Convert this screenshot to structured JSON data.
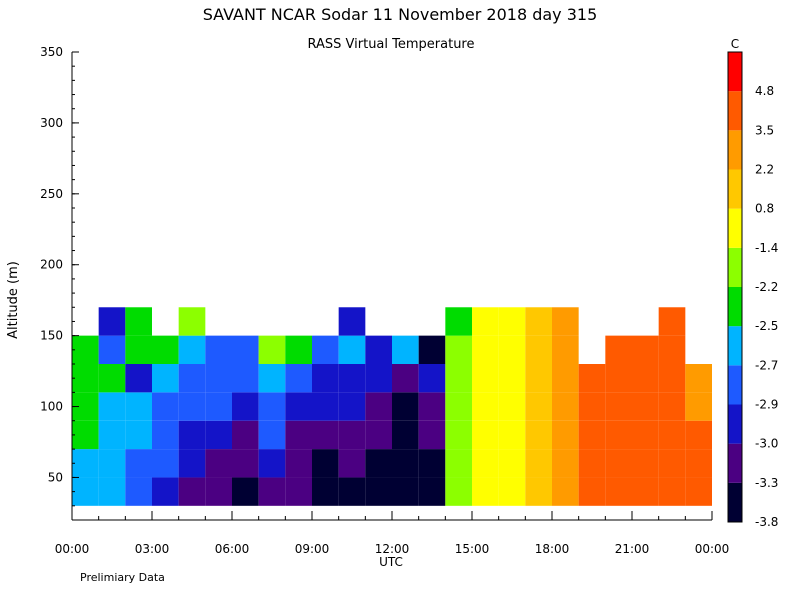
{
  "title": "SAVANT  NCAR Sodar  11 November 2018  day 315",
  "subtitle": "RASS Virtual Temperature",
  "footer_note": "Prelimiary Data",
  "chart_data": {
    "type": "heatmap",
    "title": "SAVANT  NCAR Sodar  11 November 2018  day 315",
    "subtitle": "RASS Virtual Temperature",
    "xlabel": "UTC",
    "ylabel": "Altitude (m)",
    "x_ticks": [
      "00:00",
      "03:00",
      "06:00",
      "09:00",
      "12:00",
      "15:00",
      "18:00",
      "21:00",
      "00:00"
    ],
    "xlim_hours": [
      0,
      24
    ],
    "y_ticks": [
      50,
      100,
      150,
      200,
      250,
      300,
      350
    ],
    "ylim": [
      20,
      350
    ],
    "colorbar": {
      "unit": "C",
      "tick_labels": [
        "4.8",
        "3.5",
        "2.2",
        "0.8",
        "-1.4",
        "-2.2",
        "-2.5",
        "-2.7",
        "-2.9",
        "-3.0",
        "-3.3",
        "-3.8"
      ],
      "colors": [
        "#000033",
        "#4b0082",
        "#1414c8",
        "#1e5aff",
        "#00b4ff",
        "#00dc00",
        "#8cff00",
        "#ffff00",
        "#ffc800",
        "#ff9b00",
        "#ff5a00",
        "#ff0000"
      ]
    },
    "altitudes_m": [
      40,
      60,
      80,
      100,
      120,
      140,
      160
    ],
    "time_hours": [
      0,
      1,
      2,
      3,
      4,
      5,
      6,
      7,
      8,
      9,
      10,
      11,
      12,
      13,
      14,
      15,
      16,
      17,
      18,
      19,
      20,
      21,
      22,
      23
    ],
    "values_c": [
      [
        -2.6,
        -2.7,
        -2.8,
        -3.0,
        -3.1,
        -3.3,
        -3.6,
        -3.2,
        -3.3,
        -3.5,
        -3.4,
        -3.6,
        -3.7,
        -3.5,
        -2.2,
        -1.4,
        -1.2,
        2.0,
        2.5,
        4.5,
        4.6,
        4.7,
        4.2,
        3.5
      ],
      [
        -2.6,
        -2.7,
        -2.8,
        -2.9,
        -3.0,
        -3.2,
        -3.3,
        -3.0,
        -3.3,
        -3.4,
        -3.3,
        -3.4,
        -3.5,
        -3.4,
        -2.2,
        -1.4,
        -1.2,
        2.0,
        2.5,
        4.5,
        4.6,
        4.7,
        4.3,
        3.5
      ],
      [
        -2.5,
        -2.7,
        -2.7,
        -2.9,
        -3.0,
        -3.0,
        -3.1,
        -2.9,
        -3.1,
        -3.2,
        -3.2,
        -3.3,
        -3.4,
        -3.3,
        -2.2,
        -1.4,
        -1.2,
        2.0,
        2.3,
        4.5,
        4.6,
        4.7,
        4.4,
        3.5
      ],
      [
        -2.5,
        -2.6,
        -2.6,
        -2.8,
        -2.9,
        -2.9,
        -3.0,
        -2.8,
        -3.0,
        -3.0,
        -3.0,
        -3.1,
        -4.7,
        -3.1,
        -2.2,
        -1.4,
        -1.0,
        2.0,
        2.4,
        4.5,
        4.6,
        4.7,
        3.6,
        3.0
      ],
      [
        -2.3,
        -2.5,
        -3.0,
        -2.6,
        -2.8,
        -2.8,
        -2.9,
        -2.7,
        -2.8,
        -3.0,
        -3.0,
        -3.0,
        -3.2,
        -3.0,
        -2.2,
        -1.4,
        -1.0,
        2.0,
        2.5,
        4.5,
        4.6,
        4.7,
        3.6,
        3.0
      ],
      [
        -2.3,
        -2.9,
        -2.4,
        -2.5,
        -2.6,
        -2.8,
        -2.8,
        -2.2,
        -2.5,
        -2.9,
        -2.7,
        -3.0,
        -2.7,
        -4.6,
        -2.2,
        -1.4,
        -1.0,
        2.0,
        2.6,
        null,
        4.6,
        4.7,
        4.6,
        null
      ],
      [
        null,
        -3.0,
        -2.5,
        null,
        -2.2,
        null,
        null,
        null,
        null,
        null,
        -3.0,
        null,
        null,
        null,
        -2.3,
        -1.4,
        -1.0,
        2.0,
        2.3,
        null,
        null,
        null,
        4.6,
        null
      ]
    ]
  }
}
